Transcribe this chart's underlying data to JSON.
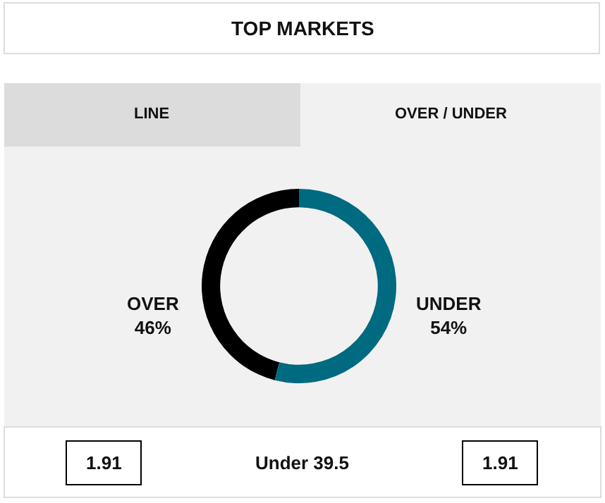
{
  "chart_data": {
    "type": "donut",
    "title": "TOP MARKETS",
    "categories": [
      "OVER",
      "UNDER"
    ],
    "values": [
      46,
      54
    ],
    "value_labels": [
      "46%",
      "54%"
    ],
    "colors": [
      "#000000",
      "#006a80"
    ],
    "legend": false,
    "annotations": [
      "LINE",
      "OVER / UNDER",
      "1.91",
      "Under 39.5",
      "1.91"
    ]
  }
}
